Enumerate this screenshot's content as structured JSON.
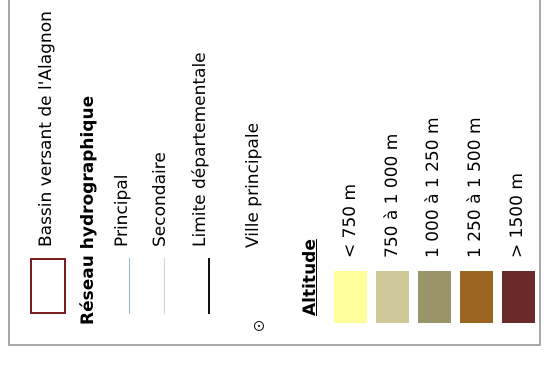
{
  "legend": {
    "basin": {
      "label": "Bassin versant de l'Alagnon",
      "border_color": "#7a1e1e"
    },
    "hydro": {
      "title": "Réseau hydrographique",
      "principal": {
        "label": "Principal",
        "color": "#8fb5dc"
      },
      "secondaire": {
        "label": "Secondaire",
        "color": "#c9d3dc"
      }
    },
    "limite": {
      "label": "Limite départementale",
      "color": "#111111"
    },
    "ville": {
      "label": "Ville principale",
      "icon": "dot-circle-icon"
    },
    "altitude": {
      "title": "Altitude",
      "classes": [
        {
          "label": "< 750 m",
          "color": "#ffff99"
        },
        {
          "label": "750 à 1 000 m",
          "color": "#cfc899"
        },
        {
          "label": "1 000 à 1 250 m",
          "color": "#99946a"
        },
        {
          "label": "1 250 à 1 500 m",
          "color": "#9b6622"
        },
        {
          "label": "> 1500 m",
          "color": "#6b2a2a"
        }
      ]
    }
  }
}
